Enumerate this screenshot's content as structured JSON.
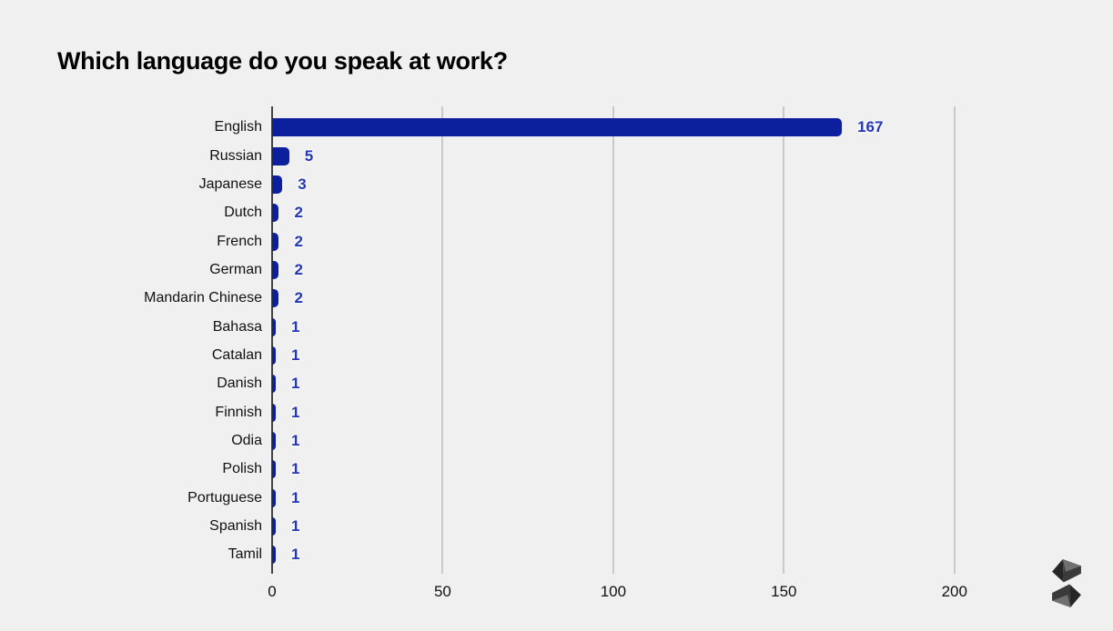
{
  "page": {
    "background": "#f0f0f0"
  },
  "chart_data": {
    "type": "bar",
    "orientation": "horizontal",
    "title": "Which language do you speak at work?",
    "categories": [
      "English",
      "Russian",
      "Japanese",
      "Dutch",
      "French",
      "German",
      "Mandarin Chinese",
      "Bahasa",
      "Catalan",
      "Danish",
      "Finnish",
      "Odia",
      "Polish",
      "Portuguese",
      "Spanish",
      "Tamil"
    ],
    "values": [
      167,
      5,
      3,
      2,
      2,
      2,
      2,
      1,
      1,
      1,
      1,
      1,
      1,
      1,
      1,
      1
    ],
    "value_labels": [
      "167",
      "5",
      "3",
      "2",
      "2",
      "2",
      "2",
      "1",
      "1",
      "1",
      "1",
      "1",
      "1",
      "1",
      "1",
      "1"
    ],
    "x_ticks": [
      0,
      50,
      100,
      150,
      200
    ],
    "xlim": [
      0,
      223
    ],
    "xlabel": "",
    "ylabel": "",
    "grid": "vertical-gridlines-only",
    "legend": "none",
    "colors": {
      "bar": "#0c209e",
      "value_label": "#2438b5",
      "category_label": "#111111",
      "tick_label": "#111111",
      "gridline": "#c9c9c9",
      "axis_line": "#424242",
      "title": "#000000",
      "background": "#f0f0f0"
    }
  },
  "watermark": {
    "icon": "s-logo",
    "colors": [
      "#262626",
      "#3a3a3a",
      "#707070"
    ]
  }
}
